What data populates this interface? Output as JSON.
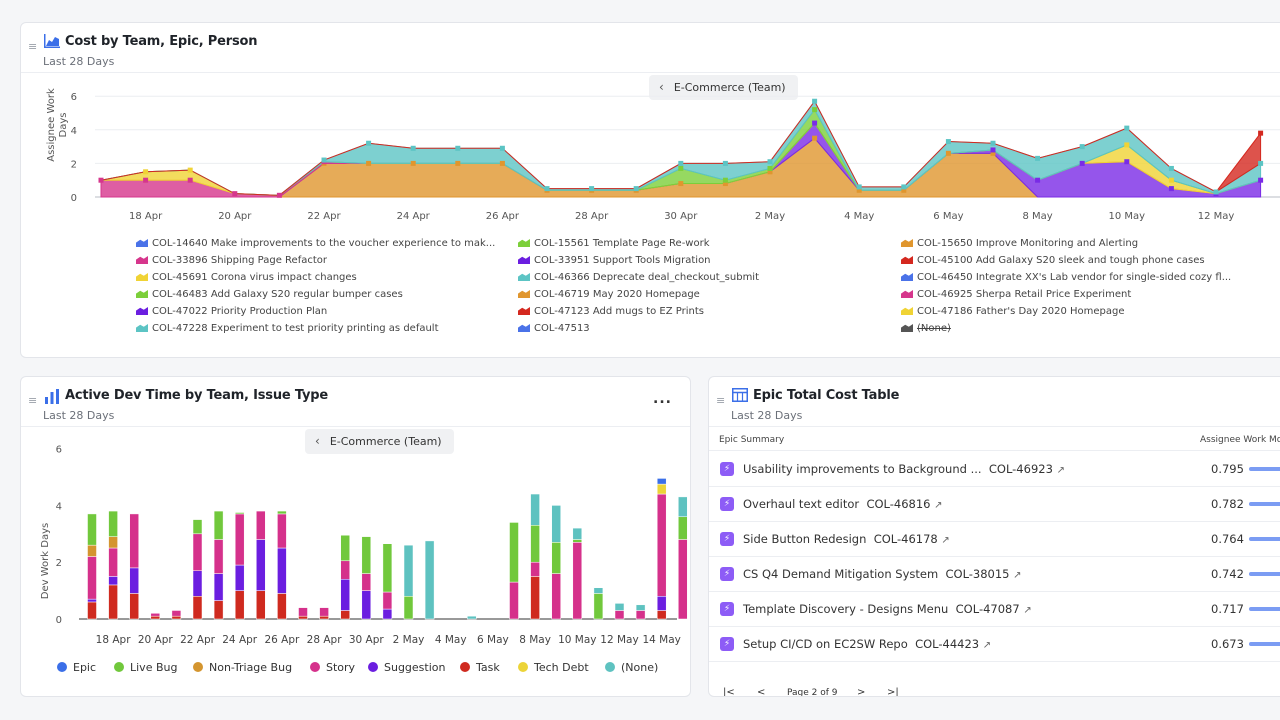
{
  "panel1": {
    "title": "Cost by Team, Epic, Person",
    "subtitle": "Last 28 Days",
    "team_chip": "E-Commerce (Team)",
    "y_label": "Assignee Work Days",
    "y_ticks": [
      "0",
      "2",
      "4",
      "6"
    ],
    "x_ticks": [
      "18 Apr",
      "20 Apr",
      "22 Apr",
      "24 Apr",
      "26 Apr",
      "28 Apr",
      "30 Apr",
      "2 May",
      "4 May",
      "6 May",
      "8 May",
      "10 May",
      "12 May"
    ],
    "legend": [
      {
        "label": "COL-14640 Make improvements to the voucher experience to mak...",
        "color": "#4a72e8"
      },
      {
        "label": "COL-15561 Template Page Re-work",
        "color": "#7ccf3a"
      },
      {
        "label": "COL-15650 Improve Monitoring and Alerting",
        "color": "#e0962e"
      },
      {
        "label": "COL-33896 Shipping Page Refactor",
        "color": "#d6368c"
      },
      {
        "label": "COL-33951 Support Tools Migration",
        "color": "#6b1ee0"
      },
      {
        "label": "COL-45100 Add Galaxy S20 sleek and tough phone cases",
        "color": "#d4281f"
      },
      {
        "label": "COL-45691 Corona virus impact changes",
        "color": "#f0d335"
      },
      {
        "label": "COL-46366 Deprecate deal_checkout_submit",
        "color": "#5cc4c4"
      },
      {
        "label": "COL-46450 Integrate XX's Lab vendor for single-sided cozy fl...",
        "color": "#4a72e8"
      },
      {
        "label": "COL-46483 Add Galaxy S20 regular bumper cases",
        "color": "#7ccf3a"
      },
      {
        "label": "COL-46719 May 2020 Homepage",
        "color": "#e0962e"
      },
      {
        "label": "COL-46925 Sherpa Retail Price Experiment",
        "color": "#d6368c"
      },
      {
        "label": "COL-47022 Priority Production Plan",
        "color": "#6b1ee0"
      },
      {
        "label": "COL-47123 Add mugs to EZ Prints",
        "color": "#d4281f"
      },
      {
        "label": "COL-47186 Father's Day 2020 Homepage",
        "color": "#f0d335"
      },
      {
        "label": "COL-47228 Experiment to test priority printing as default",
        "color": "#5cc4c4"
      },
      {
        "label": "COL-47513",
        "color": "#4a72e8"
      },
      {
        "label": "(None)",
        "color": "#555555"
      }
    ]
  },
  "panel2": {
    "title": "Active Dev Time by Team, Issue Type",
    "subtitle": "Last 28 Days",
    "team_chip": "E-Commerce (Team)",
    "more_label": "...",
    "legend": [
      {
        "label": "Epic",
        "color": "#3b6fe8"
      },
      {
        "label": "Live Bug",
        "color": "#71c83c"
      },
      {
        "label": "Non-Triage Bug",
        "color": "#d4952f"
      },
      {
        "label": "Story",
        "color": "#d5318b"
      },
      {
        "label": "Suggestion",
        "color": "#6b1ee0"
      },
      {
        "label": "Task",
        "color": "#cf2a1f"
      },
      {
        "label": "Tech Debt",
        "color": "#ecd438"
      },
      {
        "label": "(None)",
        "color": "#5ec2c0"
      }
    ]
  },
  "panel3": {
    "title": "Epic Total Cost Table",
    "subtitle": "Last 28 Days",
    "col_summary": "Epic Summary",
    "col_value": "Assignee Work Mo",
    "rows": [
      {
        "name": "Usability improvements to Background ...",
        "key": "COL-46923",
        "value": "0.795"
      },
      {
        "name": "Overhaul text editor",
        "key": "COL-46816",
        "value": "0.782"
      },
      {
        "name": "Side Button Redesign",
        "key": "COL-46178",
        "value": "0.764"
      },
      {
        "name": "CS Q4 Demand Mitigation System",
        "key": "COL-38015",
        "value": "0.742"
      },
      {
        "name": "Template Discovery - Designs Menu",
        "key": "COL-47087",
        "value": "0.717"
      },
      {
        "name": "Setup CI/CD on EC2SW Repo",
        "key": "COL-44423",
        "value": "0.673"
      }
    ],
    "pager": {
      "first": "|<",
      "prev": "<",
      "label": "Page 2 of 9",
      "next": ">",
      "last": ">|"
    }
  },
  "chart_data": [
    {
      "type": "area",
      "title": "Cost by Team, Epic, Person",
      "ylabel": "Assignee Work Days",
      "ylim": [
        0,
        6
      ],
      "x": [
        "17 Apr",
        "18 Apr",
        "19 Apr",
        "20 Apr",
        "21 Apr",
        "22 Apr",
        "23 Apr",
        "24 Apr",
        "25 Apr",
        "26 Apr",
        "27 Apr",
        "28 Apr",
        "29 Apr",
        "30 Apr",
        "1 May",
        "2 May",
        "3 May",
        "4 May",
        "5 May",
        "6 May",
        "7 May",
        "8 May",
        "9 May",
        "10 May",
        "11 May",
        "12 May",
        "13 May"
      ],
      "series": [
        {
          "name": "COL-15650 Improve Monitoring and Alerting",
          "values": [
            0,
            0,
            0,
            0,
            0,
            2.0,
            2.0,
            2.0,
            2.0,
            2.0,
            0.4,
            0.4,
            0.4,
            0.8,
            0.8,
            1.5,
            3.5,
            0.4,
            0.4,
            2.6,
            2.6,
            0,
            0,
            0,
            0,
            0,
            0
          ]
        },
        {
          "name": "COL-47022 Priority Production Plan",
          "values": [
            0,
            0,
            0,
            0,
            0,
            0,
            0,
            0,
            0,
            0,
            0,
            0,
            0,
            0,
            0,
            0,
            0.9,
            0,
            0,
            0,
            0.2,
            1.0,
            2.0,
            2.1,
            0.5,
            0.2,
            1.0
          ]
        },
        {
          "name": "COL-33896 Shipping Page Refactor",
          "values": [
            1.0,
            1.0,
            1.0,
            0.2,
            0.1,
            0.1,
            0,
            0,
            0,
            0,
            0,
            0,
            0,
            0,
            0,
            0,
            0,
            0,
            0,
            0,
            0,
            0,
            0,
            0,
            0,
            0,
            0
          ]
        },
        {
          "name": "COL-45691 Corona virus impact changes",
          "values": [
            0,
            0.5,
            0.6,
            0,
            0,
            0,
            0,
            0,
            0,
            0,
            0,
            0,
            0,
            0,
            0,
            0,
            0,
            0,
            0,
            0,
            0,
            0,
            0,
            1.0,
            0.5,
            0,
            0
          ]
        },
        {
          "name": "COL-46483 Add Galaxy S20 regular bumper cases",
          "values": [
            0,
            0,
            0,
            0,
            0,
            0,
            0,
            0,
            0,
            0,
            0,
            0,
            0,
            0.9,
            0.2,
            0.2,
            0.8,
            0,
            0,
            0,
            0,
            0,
            0,
            0,
            0,
            0,
            0
          ]
        },
        {
          "name": "COL-47228 Experiment to test priority printing as default",
          "values": [
            0,
            0,
            0,
            0,
            0,
            0.1,
            1.2,
            0.9,
            0.9,
            0.9,
            0.1,
            0.1,
            0.1,
            0.3,
            1.0,
            0.4,
            0.5,
            0.2,
            0.2,
            0.7,
            0.4,
            1.3,
            1.0,
            1.0,
            0.7,
            0.1,
            1.0
          ]
        },
        {
          "name": "COL-45100 Add Galaxy S20 sleek and tough phone cases",
          "values": [
            0,
            0,
            0,
            0,
            0,
            0,
            0,
            0,
            0,
            0,
            0,
            0,
            0,
            0,
            0,
            0,
            0,
            0,
            0,
            0,
            0,
            0,
            0,
            0,
            0,
            0,
            1.8
          ]
        }
      ]
    },
    {
      "type": "bar",
      "stacked": true,
      "title": "Active Dev Time by Team, Issue Type",
      "ylabel": "Dev Work Days",
      "ylim": [
        0,
        6
      ],
      "categories": [
        "17 Apr",
        "18 Apr",
        "19 Apr",
        "20 Apr",
        "21 Apr",
        "22 Apr",
        "23 Apr",
        "24 Apr",
        "25 Apr",
        "26 Apr",
        "27 Apr",
        "28 Apr",
        "29 Apr",
        "30 Apr",
        "1 May",
        "2 May",
        "3 May",
        "4 May",
        "5 May",
        "6 May",
        "7 May",
        "8 May",
        "9 May",
        "10 May",
        "11 May",
        "12 May",
        "13 May",
        "14 May",
        "15 May"
      ],
      "x_ticks": [
        "18 Apr",
        "20 Apr",
        "22 Apr",
        "24 Apr",
        "26 Apr",
        "28 Apr",
        "30 Apr",
        "2 May",
        "4 May",
        "6 May",
        "8 May",
        "10 May",
        "12 May",
        "14 May"
      ],
      "y_ticks": [
        "0",
        "2",
        "4",
        "6"
      ],
      "series": [
        {
          "name": "Task",
          "values": [
            0.6,
            1.2,
            0.9,
            0.1,
            0.1,
            0.8,
            0.65,
            1.0,
            1.0,
            0.9,
            0.1,
            0.1,
            0.3,
            0.0,
            0.0,
            0.0,
            0.0,
            0.0,
            0.0,
            0.0,
            0.0,
            1.5,
            0.0,
            0.0,
            0.0,
            0.0,
            0.0,
            0.3,
            0.0
          ]
        },
        {
          "name": "Suggestion",
          "values": [
            0.1,
            0.3,
            0.9,
            0,
            0,
            0.9,
            0.95,
            0.9,
            1.8,
            1.6,
            0,
            0,
            1.1,
            1.0,
            0.35,
            0,
            0,
            0,
            0,
            0,
            0,
            0,
            0,
            0,
            0,
            0,
            0,
            0.5,
            0
          ]
        },
        {
          "name": "Story",
          "values": [
            1.5,
            1.0,
            1.9,
            0.1,
            0.2,
            1.3,
            1.2,
            1.8,
            1.0,
            1.2,
            0.3,
            0.3,
            0.65,
            0.6,
            0.6,
            0,
            0,
            0,
            0,
            0,
            1.3,
            0.5,
            1.6,
            2.7,
            0,
            0.3,
            0.3,
            3.6,
            2.8
          ]
        },
        {
          "name": "Non-Triage Bug",
          "values": [
            0.4,
            0.4,
            0,
            0,
            0,
            0,
            0,
            0,
            0,
            0,
            0,
            0,
            0,
            0,
            0,
            0,
            0,
            0,
            0,
            0,
            0,
            0,
            0,
            0,
            0,
            0,
            0,
            0,
            0
          ]
        },
        {
          "name": "Tech Debt",
          "values": [
            0,
            0,
            0,
            0,
            0,
            0,
            0,
            0,
            0,
            0,
            0,
            0,
            0,
            0,
            0,
            0,
            0,
            0,
            0,
            0,
            0,
            0,
            0,
            0,
            0,
            0,
            0,
            0.35,
            0
          ]
        },
        {
          "name": "Live Bug",
          "values": [
            1.1,
            0.9,
            0,
            0,
            0,
            0.5,
            1.0,
            0.05,
            0,
            0.1,
            0,
            0,
            0.9,
            1.3,
            1.7,
            0.8,
            0,
            0,
            0,
            0,
            2.1,
            1.3,
            1.1,
            0.1,
            0.9,
            0,
            0,
            0,
            0.8
          ]
        },
        {
          "name": "(None)",
          "values": [
            0,
            0,
            0,
            0,
            0,
            0,
            0,
            0,
            0,
            0,
            0,
            0,
            0,
            0,
            0,
            1.8,
            2.75,
            0,
            0.1,
            0,
            0,
            1.1,
            1.3,
            0.4,
            0.2,
            0.25,
            0.2,
            0,
            0.7
          ]
        },
        {
          "name": "Epic",
          "values": [
            0,
            0,
            0,
            0,
            0,
            0,
            0,
            0,
            0,
            0,
            0,
            0,
            0,
            0,
            0,
            0,
            0,
            0,
            0,
            0,
            0,
            0,
            0,
            0,
            0,
            0,
            0,
            0.2,
            0
          ]
        }
      ]
    }
  ]
}
